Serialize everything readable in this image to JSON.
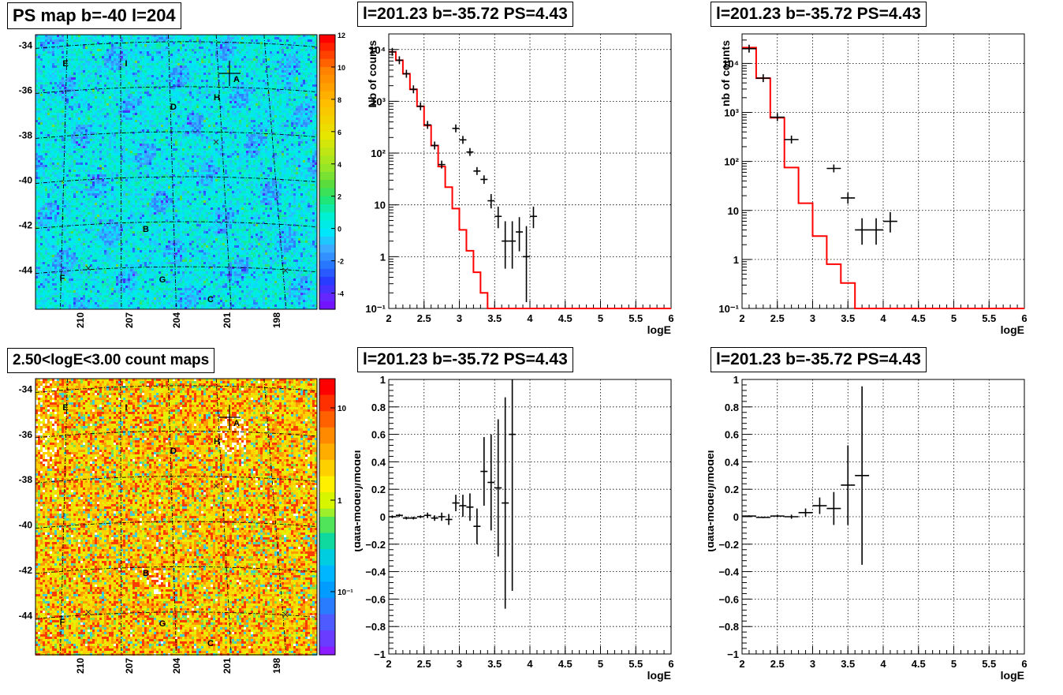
{
  "chart_data": [
    {
      "id": "psmap",
      "type": "heatmap",
      "title": "PS map b=-40 l=204",
      "y_ticks": [
        "-34",
        "-36",
        "-38",
        "-40",
        "-42",
        "-44"
      ],
      "x_ticks": [
        "210",
        "207",
        "204",
        "201",
        "198"
      ],
      "colorbar_ticks": [
        "12",
        "10",
        "8",
        "6",
        "4",
        "2",
        "0",
        "-2",
        "-4"
      ],
      "zlim": [
        -5,
        12
      ],
      "sources": [
        {
          "label": "A",
          "l": 200.8,
          "b": -35.85
        },
        {
          "label": "B",
          "l": 205.1,
          "b": -42.5
        },
        {
          "label": "C",
          "l": 202.0,
          "b": -45.6
        },
        {
          "label": "D",
          "l": 203.9,
          "b": -37.0
        },
        {
          "label": "E",
          "l": 210.0,
          "b": -34.8
        },
        {
          "label": "F",
          "l": 210.0,
          "b": -44.6
        },
        {
          "label": "G",
          "l": 204.8,
          "b": -44.8
        },
        {
          "label": "H",
          "l": 201.6,
          "b": -36.5
        },
        {
          "label": "I",
          "l": 207.1,
          "b": -34.8
        }
      ]
    },
    {
      "id": "countmap",
      "type": "heatmap",
      "title": "2.50<logE<3.00 count maps",
      "y_ticks": [
        "-34",
        "-36",
        "-38",
        "-40",
        "-42",
        "-44"
      ],
      "x_ticks": [
        "210",
        "207",
        "204",
        "201",
        "198"
      ],
      "colorbar_ticks": [
        "10",
        "1",
        "10⁻¹"
      ],
      "zscale": "log"
    },
    {
      "id": "spec1",
      "type": "line",
      "title": "l=201.23 b=-35.72 PS=4.43",
      "xlabel": "logE",
      "ylabel": "Nb of counts",
      "xlim": [
        2,
        6
      ],
      "ylim": [
        0.1,
        20000
      ],
      "yscale": "log",
      "grid": true,
      "x_ticks": [
        "2",
        "2.5",
        "3",
        "3.5",
        "4",
        "4.5",
        "5",
        "5.5",
        "6"
      ],
      "y_ticks": [
        "10⁻¹",
        "1",
        "10",
        "10²",
        "10³",
        "10⁴"
      ],
      "model_bin_width": 0.1,
      "model": [
        9000,
        6200,
        3400,
        1700,
        800,
        340,
        140,
        55,
        22,
        8.5,
        3.3,
        1.3,
        0.5,
        0.2,
        0.1,
        0.1,
        0.1,
        0.1,
        0.1,
        0.1,
        0.1,
        0.1,
        0.1,
        0.1,
        0.1,
        0.1,
        0.1,
        0.1,
        0.1,
        0.1,
        0.1,
        0.1,
        0.1,
        0.1,
        0.1,
        0.1,
        0.1,
        0.1,
        0.1,
        0.1
      ],
      "data_points": [
        {
          "x": 2.05,
          "y": 9000
        },
        {
          "x": 2.15,
          "y": 6200
        },
        {
          "x": 2.25,
          "y": 3400
        },
        {
          "x": 2.35,
          "y": 1700
        },
        {
          "x": 2.45,
          "y": 800
        },
        {
          "x": 2.55,
          "y": 350
        },
        {
          "x": 2.65,
          "y": 140
        },
        {
          "x": 2.75,
          "y": 60
        },
        {
          "x": 2.95,
          "y": 300
        },
        {
          "x": 3.05,
          "y": 180
        },
        {
          "x": 3.15,
          "y": 105
        },
        {
          "x": 3.25,
          "y": 45
        },
        {
          "x": 3.35,
          "y": 31
        },
        {
          "x": 3.45,
          "y": 12
        },
        {
          "x": 3.55,
          "y": 6
        },
        {
          "x": 3.65,
          "y": 2
        },
        {
          "x": 3.75,
          "y": 2
        },
        {
          "x": 3.85,
          "y": 3
        },
        {
          "x": 3.95,
          "y": 1
        },
        {
          "x": 4.05,
          "y": 6
        }
      ]
    },
    {
      "id": "spec2",
      "type": "line",
      "title": "l=201.23 b=-35.72 PS=4.43",
      "xlabel": "logE",
      "ylabel": "nb of counts",
      "xlim": [
        2,
        6
      ],
      "ylim": [
        0.1,
        40000
      ],
      "yscale": "log",
      "grid": true,
      "x_ticks": [
        "2",
        "2.5",
        "3",
        "3.5",
        "4",
        "4.5",
        "5",
        "5.5",
        "6"
      ],
      "y_ticks": [
        "10⁻¹",
        "1",
        "10",
        "10²",
        "10³",
        "10⁴"
      ],
      "model_bin_width": 0.2,
      "model": [
        21000,
        5000,
        780,
        75,
        14,
        3,
        0.8,
        0.33,
        0.1,
        0.1,
        0.1,
        0.1,
        0.1,
        0.1,
        0.1,
        0.1,
        0.1,
        0.1,
        0.1,
        0.1
      ],
      "data_points": [
        {
          "x": 2.1,
          "y": 20000
        },
        {
          "x": 2.3,
          "y": 5000
        },
        {
          "x": 2.5,
          "y": 800
        },
        {
          "x": 2.7,
          "y": 280
        },
        {
          "x": 3.3,
          "y": 72
        },
        {
          "x": 3.5,
          "y": 18
        },
        {
          "x": 3.7,
          "y": 4
        },
        {
          "x": 3.9,
          "y": 4
        },
        {
          "x": 4.1,
          "y": 6
        }
      ]
    },
    {
      "id": "resid1",
      "type": "scatter",
      "title": "l=201.23 b=-35.72 PS=4.43",
      "xlabel": "logE",
      "ylabel": "(data-model)/model",
      "xlim": [
        2,
        6
      ],
      "ylim": [
        -1,
        1
      ],
      "grid": true,
      "x_ticks": [
        "2",
        "2.5",
        "3",
        "3.5",
        "4",
        "4.5",
        "5",
        "5.5",
        "6"
      ],
      "y_ticks": [
        "−1",
        "−0.8",
        "−0.6",
        "−0.4",
        "−0.2",
        "0",
        "0.2",
        "0.4",
        "0.6",
        "0.8",
        "1"
      ],
      "half_width": 0.05,
      "points": [
        {
          "x": 2.05,
          "y": 0,
          "err": 0.01
        },
        {
          "x": 2.15,
          "y": 0.01,
          "err": 0.01
        },
        {
          "x": 2.25,
          "y": -0.01,
          "err": 0.01
        },
        {
          "x": 2.35,
          "y": -0.01,
          "err": 0.01
        },
        {
          "x": 2.45,
          "y": 0,
          "err": 0.01
        },
        {
          "x": 2.55,
          "y": 0.01,
          "err": 0.02
        },
        {
          "x": 2.65,
          "y": -0.01,
          "err": 0.02
        },
        {
          "x": 2.75,
          "y": 0.0,
          "err": 0.03
        },
        {
          "x": 2.85,
          "y": -0.02,
          "err": 0.04
        },
        {
          "x": 2.95,
          "y": 0.1,
          "err": 0.06
        },
        {
          "x": 3.05,
          "y": 0.08,
          "err": 0.08
        },
        {
          "x": 3.15,
          "y": 0.07,
          "err": 0.1
        },
        {
          "x": 3.25,
          "y": -0.07,
          "err": 0.13
        },
        {
          "x": 3.35,
          "y": 0.33,
          "err": 0.25
        },
        {
          "x": 3.45,
          "y": 0.25,
          "err": 0.35
        },
        {
          "x": 3.55,
          "y": 0.21,
          "err": 0.5
        },
        {
          "x": 3.65,
          "y": 0.1,
          "err": 0.77
        },
        {
          "x": 3.75,
          "y": 0.6,
          "err": 1.14
        }
      ]
    },
    {
      "id": "resid2",
      "type": "scatter",
      "title": "l=201.23 b=-35.72 PS=4.43",
      "xlabel": "logE",
      "ylabel": "(data-model)/model",
      "xlim": [
        2,
        6
      ],
      "ylim": [
        -1,
        1
      ],
      "grid": true,
      "x_ticks": [
        "2",
        "2.5",
        "3",
        "3.5",
        "4",
        "4.5",
        "5",
        "5.5",
        "6"
      ],
      "y_ticks": [
        "−1",
        "−0.8",
        "−0.6",
        "−0.4",
        "−0.2",
        "0",
        "0.2",
        "0.4",
        "0.6",
        "0.8",
        "1"
      ],
      "half_width": 0.1,
      "points": [
        {
          "x": 2.1,
          "y": 0.005,
          "err": 0.005
        },
        {
          "x": 2.3,
          "y": -0.005,
          "err": 0.005
        },
        {
          "x": 2.5,
          "y": 0.005,
          "err": 0.01
        },
        {
          "x": 2.7,
          "y": 0.0,
          "err": 0.015
        },
        {
          "x": 2.9,
          "y": 0.03,
          "err": 0.03
        },
        {
          "x": 3.1,
          "y": 0.08,
          "err": 0.06
        },
        {
          "x": 3.3,
          "y": 0.06,
          "err": 0.12
        },
        {
          "x": 3.5,
          "y": 0.23,
          "err": 0.29
        },
        {
          "x": 3.7,
          "y": 0.3,
          "err": 0.65
        }
      ]
    }
  ]
}
